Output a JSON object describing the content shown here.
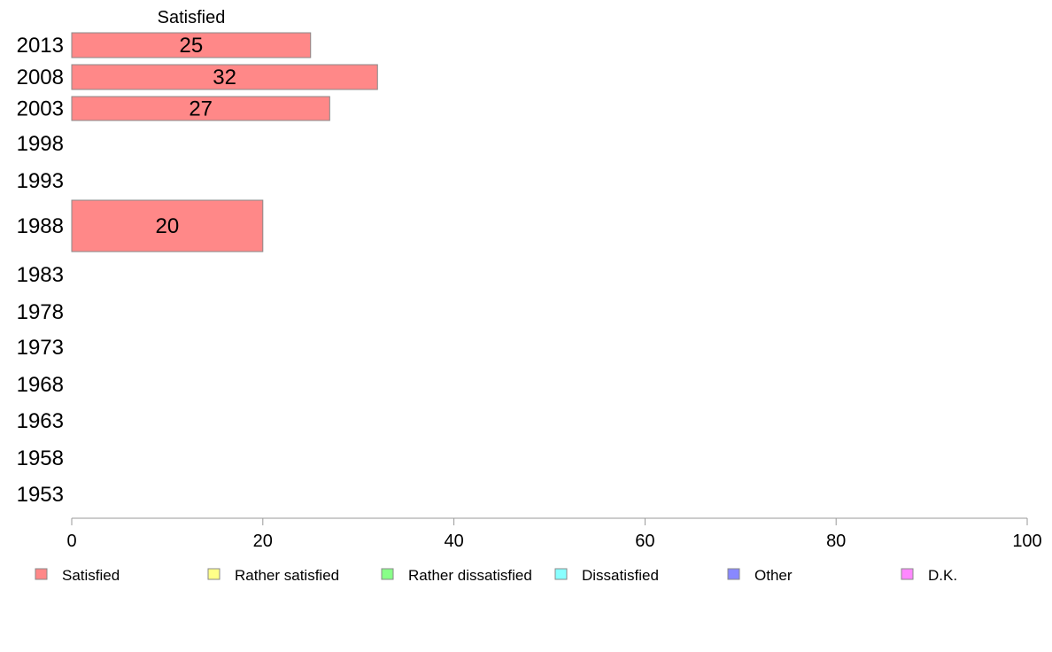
{
  "chart_data": {
    "type": "bar",
    "orientation": "horizontal",
    "series_header": "Satisfied",
    "categories": [
      "2013",
      "2008",
      "2003",
      "1998",
      "1993",
      "1988",
      "1983",
      "1978",
      "1973",
      "1968",
      "1963",
      "1958",
      "1953"
    ],
    "series": [
      {
        "name": "Satisfied",
        "values": [
          25,
          32,
          27,
          null,
          null,
          20,
          null,
          null,
          null,
          null,
          null,
          null,
          null
        ]
      }
    ],
    "data_labels": [
      "25",
      "32",
      "27",
      "",
      "",
      "20",
      "",
      "",
      "",
      "",
      "",
      "",
      ""
    ],
    "xlim": [
      0,
      100
    ],
    "xticks": [
      "0",
      "20",
      "40",
      "60",
      "80",
      "100"
    ],
    "legend": [
      {
        "label": "Satisfied",
        "color": "#ff8888"
      },
      {
        "label": "Rather satisfied",
        "color": "#ffff88"
      },
      {
        "label": "Rather dissatisfied",
        "color": "#88ff88"
      },
      {
        "label": "Dissatisfied",
        "color": "#88ffff"
      },
      {
        "label": "Other",
        "color": "#8888ff"
      },
      {
        "label": "D.K.",
        "color": "#ff88ff"
      }
    ],
    "legend_position": "bottom",
    "grid": false,
    "bar_color": "#ff8888"
  }
}
